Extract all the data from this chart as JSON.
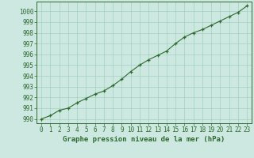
{
  "x": [
    0,
    1,
    2,
    3,
    4,
    5,
    6,
    7,
    8,
    9,
    10,
    11,
    12,
    13,
    14,
    15,
    16,
    17,
    18,
    19,
    20,
    21,
    22,
    23
  ],
  "y": [
    990.0,
    990.3,
    990.8,
    991.0,
    991.5,
    991.9,
    992.3,
    992.6,
    993.1,
    993.7,
    994.4,
    995.0,
    995.5,
    995.9,
    996.3,
    997.0,
    997.6,
    998.0,
    998.3,
    998.7,
    999.1,
    999.5,
    999.9,
    1000.5
  ],
  "line_color": "#2d6a2d",
  "marker_color": "#2d6a2d",
  "bg_color": "#cce8e0",
  "grid_color": "#99ccbb",
  "xlabel": "Graphe pression niveau de la mer (hPa)",
  "ylabel_ticks": [
    990,
    991,
    992,
    993,
    994,
    995,
    996,
    997,
    998,
    999,
    1000
  ],
  "ylim": [
    989.6,
    1000.9
  ],
  "xlim": [
    -0.5,
    23.5
  ],
  "xticks": [
    0,
    1,
    2,
    3,
    4,
    5,
    6,
    7,
    8,
    9,
    10,
    11,
    12,
    13,
    14,
    15,
    16,
    17,
    18,
    19,
    20,
    21,
    22,
    23
  ],
  "tick_fontsize": 5.5,
  "xlabel_fontsize": 6.5
}
